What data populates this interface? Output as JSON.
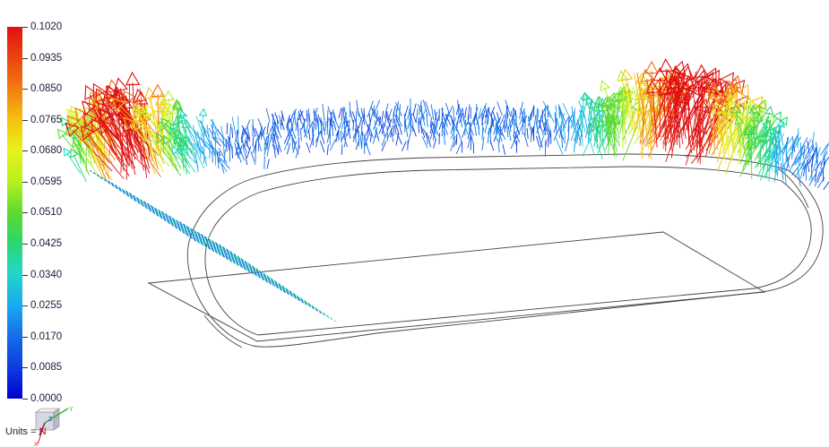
{
  "colorbar": {
    "labels": [
      "0.1020",
      "0.0935",
      "0.0850",
      "0.0765",
      "0.0680",
      "0.0595",
      "0.0510",
      "0.0425",
      "0.0340",
      "0.0255",
      "0.0170",
      "0.0085",
      "0.0000"
    ],
    "max": 0.102,
    "min": 0.0,
    "colors": [
      "#e01010",
      "#f06a10",
      "#f5c010",
      "#e8f218",
      "#b5ef20",
      "#5cda30",
      "#2cd66a",
      "#22d8c8",
      "#1aa8f0",
      "#1470e8",
      "#0c3ae0",
      "#0000d0"
    ]
  },
  "units": {
    "label": "Units",
    "value": "N"
  },
  "triad": {
    "y_axis": "Y",
    "z_axis": "Z",
    "x_axis": "X",
    "y_color": "#2db82d",
    "z_color": "#1a3ad8",
    "x_color": "#d81a1a"
  }
}
